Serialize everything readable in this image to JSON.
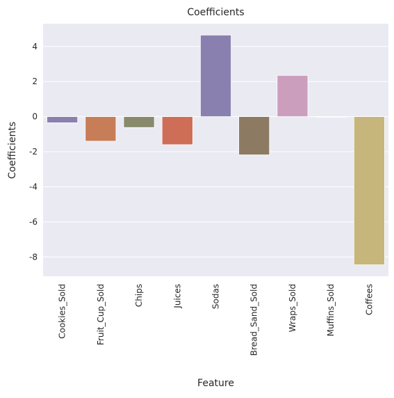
{
  "chart_data": {
    "type": "bar",
    "title": "Coefficients",
    "xlabel": "Feature",
    "ylabel": "Coefficients",
    "categories": [
      "Cookies_Sold",
      "Fruit_Cup_Sold",
      "Chips",
      "Juices",
      "Sodas",
      "Bread_Sand_Sold",
      "Wraps_Sold",
      "Muffins_Sold",
      "Coffees"
    ],
    "values": [
      -0.35,
      -1.4,
      -0.62,
      -1.6,
      4.65,
      -2.18,
      2.35,
      -0.03,
      -8.45
    ],
    "ylim": [
      -9.1,
      5.3
    ],
    "yticks": [
      -8,
      -6,
      -4,
      -2,
      0,
      2,
      4
    ],
    "grid": true,
    "background_color": "#eaeaf2",
    "grid_color": "#ffffff",
    "bar_colors": [
      "#8a80b0",
      "#c77d57",
      "#888a6b",
      "#cf6e57",
      "#8a80b0",
      "#8d7a62",
      "#cc9ebd",
      "#a6a06c",
      "#c6b67c"
    ]
  }
}
